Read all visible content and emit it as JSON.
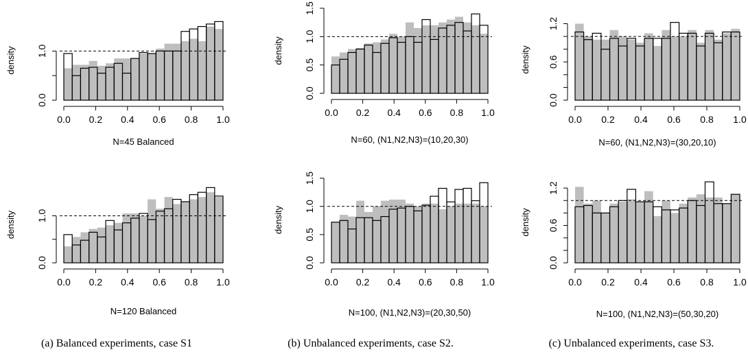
{
  "panel_titles": [
    "N=45 Balanced",
    "N=60, (N1,N2,N3)=(10,20,30)",
    "N=60, (N1,N2,N3)=(30,20,10)",
    "N=120 Balanced",
    "N=100, (N1,N2,N3)=(20,30,50)",
    "N=100, (N1,N2,N3)=(50,30,20)"
  ],
  "captions": [
    "(a)  Balanced experiments, case S1",
    "(b)  Unbalanced experiments, case S2.",
    "(c)  Unbalanced experiments, case S3."
  ],
  "colors": {
    "grey_bars": "#bebebe",
    "outline_bars": "#000000",
    "reference_line": "#000000"
  },
  "chart_data": [
    {
      "type": "bar",
      "title": "N=45 Balanced",
      "xlabel": "",
      "ylabel": "density",
      "xlim": [
        0,
        1
      ],
      "ylim": [
        0,
        1.62
      ],
      "x_ticks": [
        "0.0",
        "0.2",
        "0.4",
        "0.6",
        "0.8",
        "1.0"
      ],
      "y_ticks": [
        0.0,
        1.0
      ],
      "y_tick_labels": [
        "0.0",
        "1.0"
      ],
      "y_minor_ticks": [
        0.5
      ],
      "reference_line": 1.0,
      "bins": 19,
      "series": [
        {
          "values": [
            0.65,
            0.72,
            0.72,
            0.8,
            0.7,
            0.75,
            0.85,
            0.85,
            0.85,
            0.95,
            0.95,
            1.05,
            1.15,
            1.15,
            1.2,
            1.25,
            1.2,
            1.5,
            1.45
          ]
        },
        {
          "values": [
            0.95,
            0.5,
            0.65,
            0.67,
            0.55,
            0.67,
            0.75,
            0.55,
            0.85,
            0.97,
            0.95,
            1.0,
            1.0,
            1.0,
            1.4,
            1.45,
            1.5,
            1.55,
            1.6
          ]
        }
      ]
    },
    {
      "type": "bar",
      "title": "N=60, (N1,N2,N3)=(10,20,30)",
      "xlabel": "",
      "ylabel": "density",
      "xlim": [
        0,
        1
      ],
      "ylim": [
        0,
        1.5
      ],
      "x_ticks": [
        "0.0",
        "0.2",
        "0.4",
        "0.6",
        "0.8",
        "1.0"
      ],
      "y_ticks": [
        0.0,
        0.5,
        1.0,
        1.5
      ],
      "y_tick_labels": [
        "0.0",
        "0.5",
        "1.0",
        "1.5"
      ],
      "reference_line": 1.0,
      "bins": 19,
      "series": [
        {
          "values": [
            0.65,
            0.72,
            0.78,
            0.8,
            0.88,
            0.9,
            0.95,
            1.05,
            1.0,
            1.25,
            1.15,
            1.2,
            1.2,
            1.25,
            1.3,
            1.35,
            1.25,
            1.2,
            1.05
          ]
        },
        {
          "values": [
            0.5,
            0.6,
            0.72,
            0.78,
            0.85,
            0.72,
            0.88,
            0.98,
            0.9,
            1.0,
            0.9,
            1.3,
            0.95,
            1.15,
            1.2,
            1.25,
            1.1,
            1.4,
            1.2
          ]
        }
      ]
    },
    {
      "type": "bar",
      "title": "N=60, (N1,N2,N3)=(30,20,10)",
      "xlabel": "",
      "ylabel": "density",
      "xlim": [
        0,
        1
      ],
      "ylim": [
        0,
        1.27
      ],
      "x_ticks": [
        "0.0",
        "0.2",
        "0.4",
        "0.6",
        "0.8",
        "1.0"
      ],
      "y_ticks": [
        0.0,
        0.6,
        1.2
      ],
      "y_tick_labels": [
        "0.0",
        "0.6",
        "1.2"
      ],
      "y_minor_ticks": [
        0.2,
        0.4,
        0.8,
        1.0
      ],
      "reference_line": 1.0,
      "bins": 19,
      "series": [
        {
          "values": [
            1.2,
            1.0,
            0.95,
            0.95,
            1.1,
            1.0,
            0.95,
            0.9,
            1.05,
            0.85,
            1.1,
            1.0,
            1.0,
            1.1,
            0.9,
            1.1,
            0.95,
            1.05,
            1.12
          ]
        },
        {
          "values": [
            1.07,
            0.95,
            1.05,
            0.8,
            0.97,
            0.85,
            0.97,
            0.85,
            0.97,
            0.97,
            0.97,
            1.22,
            1.05,
            1.05,
            0.85,
            1.05,
            0.9,
            1.07,
            1.07
          ]
        }
      ]
    },
    {
      "type": "bar",
      "title": "N=120 Balanced",
      "xlabel": "",
      "ylabel": "density",
      "xlim": [
        0,
        1
      ],
      "ylim": [
        0,
        1.62
      ],
      "x_ticks": [
        "0.0",
        "0.2",
        "0.4",
        "0.6",
        "0.8",
        "1.0"
      ],
      "y_ticks": [
        0.0,
        1.0
      ],
      "y_tick_labels": [
        "0.0",
        "1.0"
      ],
      "y_minor_ticks": [
        0.5
      ],
      "reference_line": 1.0,
      "bins": 19,
      "series": [
        {
          "values": [
            0.35,
            0.55,
            0.65,
            0.72,
            0.75,
            0.8,
            0.85,
            1.05,
            1.05,
            1.0,
            1.35,
            1.15,
            1.4,
            1.25,
            1.3,
            1.35,
            1.4,
            1.5,
            1.4
          ]
        },
        {
          "values": [
            0.6,
            0.38,
            0.48,
            0.65,
            0.55,
            0.9,
            0.7,
            0.85,
            0.95,
            1.05,
            0.92,
            1.1,
            1.15,
            1.35,
            1.3,
            1.45,
            1.5,
            1.6,
            1.42
          ]
        }
      ]
    },
    {
      "type": "bar",
      "title": "N=100, (N1,N2,N3)=(20,30,50)",
      "xlabel": "",
      "ylabel": "density",
      "xlim": [
        0,
        1
      ],
      "ylim": [
        0,
        1.52
      ],
      "x_ticks": [
        "0.0",
        "0.2",
        "0.4",
        "0.6",
        "0.8",
        "1.0"
      ],
      "y_ticks": [
        0.0,
        0.5,
        1.0,
        1.5
      ],
      "y_tick_labels": [
        "0.0",
        "0.5",
        "1.0",
        "1.5"
      ],
      "reference_line": 1.0,
      "bins": 19,
      "series": [
        {
          "values": [
            0.72,
            0.85,
            0.82,
            1.1,
            0.9,
            1.0,
            1.1,
            1.12,
            1.12,
            1.05,
            1.0,
            1.05,
            1.05,
            0.95,
            1.0,
            1.05,
            1.05,
            1.05,
            1.0
          ]
        },
        {
          "values": [
            0.72,
            0.75,
            0.6,
            0.8,
            0.8,
            0.75,
            0.82,
            0.95,
            0.97,
            1.0,
            0.92,
            1.02,
            1.18,
            1.32,
            1.08,
            1.3,
            1.32,
            1.1,
            1.42
          ]
        }
      ]
    },
    {
      "type": "bar",
      "title": "N=100, (N1,N2,N3)=(50,30,20)",
      "xlabel": "",
      "ylabel": "density",
      "xlim": [
        0,
        1
      ],
      "ylim": [
        0,
        1.3
      ],
      "x_ticks": [
        "0.0",
        "0.2",
        "0.4",
        "0.6",
        "0.8",
        "1.0"
      ],
      "y_ticks": [
        0.0,
        0.6,
        1.2
      ],
      "y_tick_labels": [
        "0.0",
        "0.6",
        "1.2"
      ],
      "y_minor_ticks": [
        0.2,
        0.4,
        0.8,
        1.0
      ],
      "reference_line": 1.0,
      "bins": 19,
      "series": [
        {
          "values": [
            1.22,
            0.95,
            1.0,
            0.8,
            0.95,
            0.98,
            1.02,
            0.98,
            1.15,
            0.75,
            1.0,
            0.8,
            0.95,
            1.05,
            1.1,
            1.05,
            1.05,
            0.95,
            1.1
          ]
        },
        {
          "values": [
            0.9,
            0.92,
            0.8,
            0.8,
            0.9,
            1.0,
            1.18,
            0.98,
            0.98,
            0.9,
            0.85,
            0.85,
            0.88,
            1.0,
            0.92,
            1.3,
            0.95,
            0.95,
            1.1
          ]
        }
      ]
    }
  ]
}
